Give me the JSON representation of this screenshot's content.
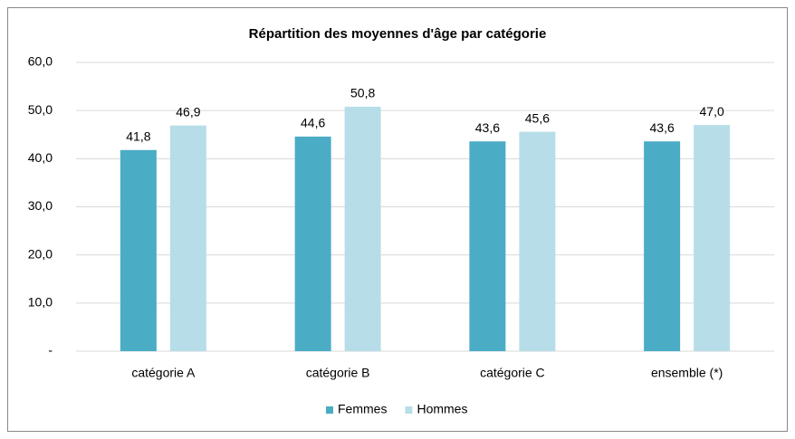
{
  "chart_data": {
    "type": "bar",
    "title": "Répartition des moyennes d'âge par catégorie",
    "categories": [
      "catégorie A",
      "catégorie B",
      "catégorie C",
      "ensemble (*)"
    ],
    "series": [
      {
        "name": "Femmes",
        "color": "#4bacc6",
        "values": [
          41.8,
          44.6,
          43.6,
          43.6
        ],
        "value_labels": [
          "41,8",
          "44,6",
          "43,6",
          "43,6"
        ]
      },
      {
        "name": "Hommes",
        "color": "#b7dee8",
        "values": [
          46.9,
          50.8,
          45.6,
          47.0
        ],
        "value_labels": [
          "46,9",
          "50,8",
          "45,6",
          "47,0"
        ]
      }
    ],
    "ylim": [
      0,
      60
    ],
    "yticks": [
      {
        "value": 0,
        "label": "-"
      },
      {
        "value": 10,
        "label": "10,0"
      },
      {
        "value": 20,
        "label": "20,0"
      },
      {
        "value": 30,
        "label": "30,0"
      },
      {
        "value": 40,
        "label": "40,0"
      },
      {
        "value": 50,
        "label": "50,0"
      },
      {
        "value": 60,
        "label": "60,0"
      }
    ],
    "grid": true,
    "legend": "bottom"
  }
}
